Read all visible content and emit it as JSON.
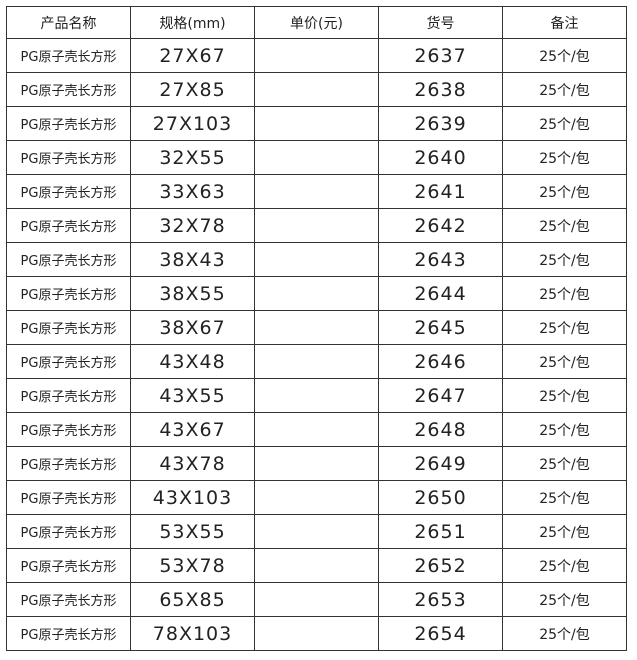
{
  "headers": [
    "产品名称",
    "规格(mm)",
    "单价(元)",
    "货号",
    "备注"
  ],
  "rows": [
    {
      "name": "PG原子壳长方形",
      "spec": "27X67",
      "price": "",
      "code": "2637",
      "note": "25个/包"
    },
    {
      "name": "PG原子壳长方形",
      "spec": "27X85",
      "price": "",
      "code": "2638",
      "note": "25个/包"
    },
    {
      "name": "PG原子壳长方形",
      "spec": "27X103",
      "price": "",
      "code": "2639",
      "note": "25个/包"
    },
    {
      "name": "PG原子壳长方形",
      "spec": "32X55",
      "price": "",
      "code": "2640",
      "note": "25个/包"
    },
    {
      "name": "PG原子壳长方形",
      "spec": "33X63",
      "price": "",
      "code": "2641",
      "note": "25个/包"
    },
    {
      "name": "PG原子壳长方形",
      "spec": "32X78",
      "price": "",
      "code": "2642",
      "note": "25个/包"
    },
    {
      "name": "PG原子壳长方形",
      "spec": "38X43",
      "price": "",
      "code": "2643",
      "note": "25个/包"
    },
    {
      "name": "PG原子壳长方形",
      "spec": "38X55",
      "price": "",
      "code": "2644",
      "note": "25个/包"
    },
    {
      "name": "PG原子壳长方形",
      "spec": "38X67",
      "price": "",
      "code": "2645",
      "note": "25个/包"
    },
    {
      "name": "PG原子壳长方形",
      "spec": "43X48",
      "price": "",
      "code": "2646",
      "note": "25个/包"
    },
    {
      "name": "PG原子壳长方形",
      "spec": "43X55",
      "price": "",
      "code": "2647",
      "note": "25个/包"
    },
    {
      "name": "PG原子壳长方形",
      "spec": "43X67",
      "price": "",
      "code": "2648",
      "note": "25个/包"
    },
    {
      "name": "PG原子壳长方形",
      "spec": "43X78",
      "price": "",
      "code": "2649",
      "note": "25个/包"
    },
    {
      "name": "PG原子壳长方形",
      "spec": "43X103",
      "price": "",
      "code": "2650",
      "note": "25个/包"
    },
    {
      "name": "PG原子壳长方形",
      "spec": "53X55",
      "price": "",
      "code": "2651",
      "note": "25个/包"
    },
    {
      "name": "PG原子壳长方形",
      "spec": "53X78",
      "price": "",
      "code": "2652",
      "note": "25个/包"
    },
    {
      "name": "PG原子壳长方形",
      "spec": "65X85",
      "price": "",
      "code": "2653",
      "note": "25个/包"
    },
    {
      "name": "PG原子壳长方形",
      "spec": "78X103",
      "price": "",
      "code": "2654",
      "note": "25个/包"
    }
  ]
}
